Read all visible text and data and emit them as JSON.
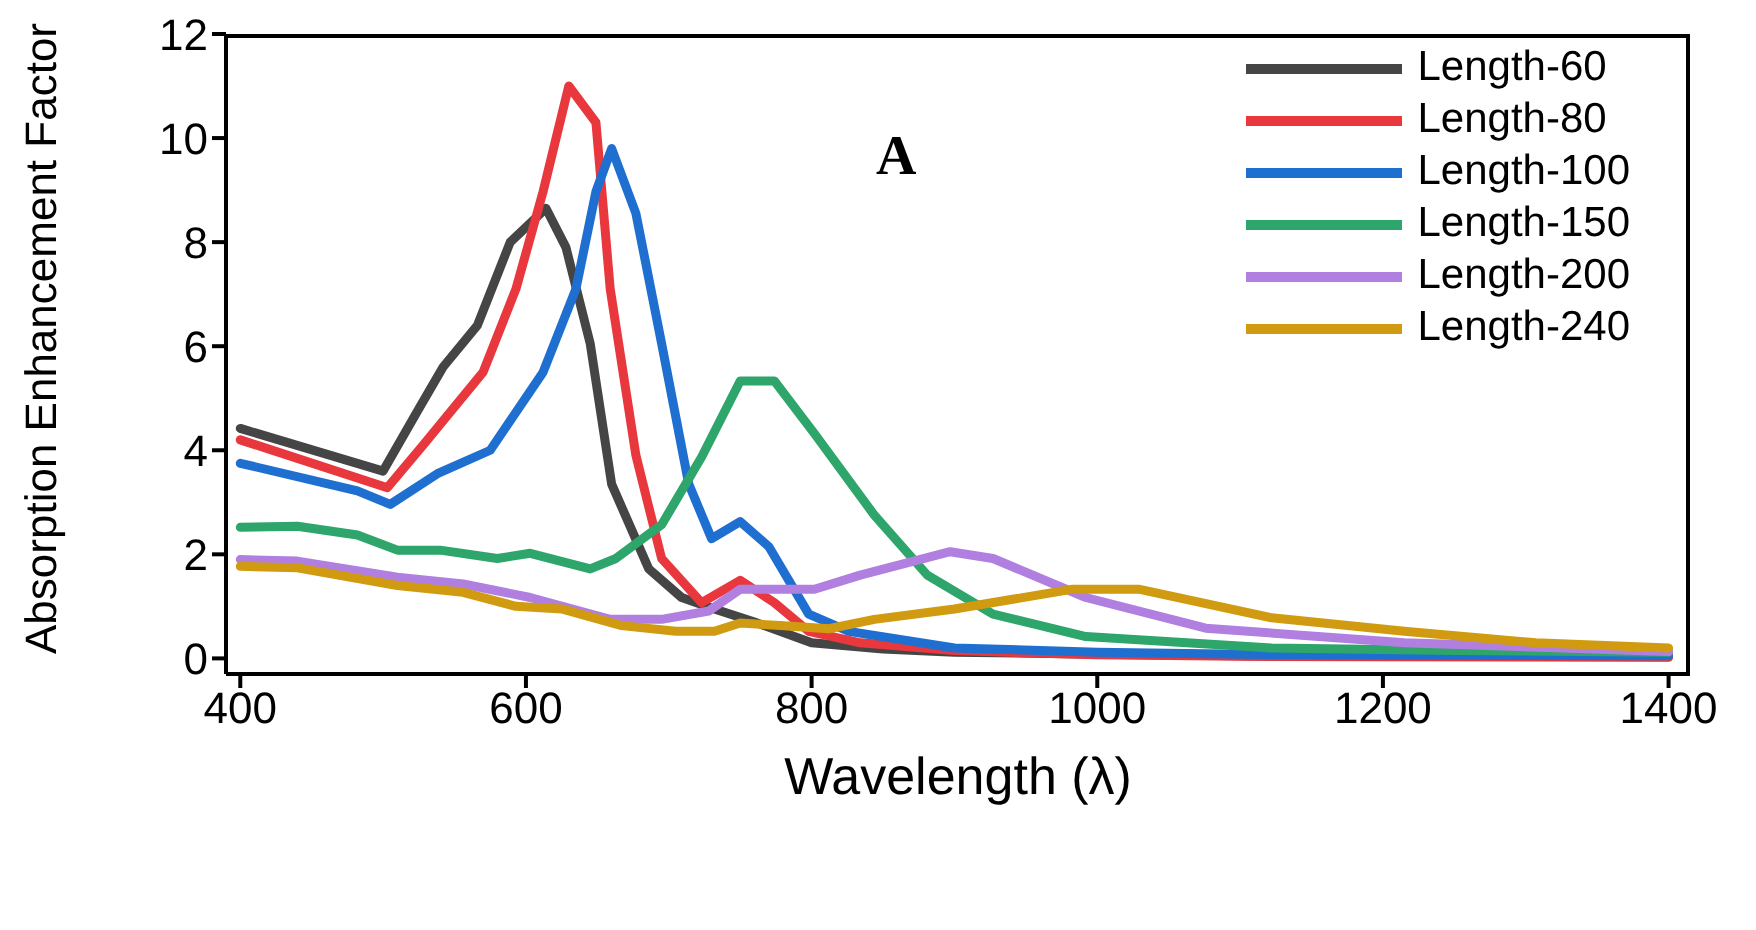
{
  "chart_data": {
    "type": "line",
    "xlabel": "Wavelength (λ)",
    "ylabel": "Absorption Enhancement Factor",
    "annotations": [
      "A"
    ],
    "xlim": [
      390,
      1415
    ],
    "xticks": [
      400,
      600,
      800,
      1000,
      1200,
      1400
    ],
    "ylim": [
      -0.3,
      12
    ],
    "yticks": [
      0,
      2,
      4,
      6,
      8,
      10,
      12
    ],
    "legend": "top right",
    "marker": "none",
    "line_style": "solid",
    "series": [
      {
        "name": "Length-60",
        "color": "#454545",
        "x": [
          400,
          500,
          524,
          542,
          566,
          589,
          614,
          628,
          645,
          660,
          686,
          709,
          732,
          760,
          800,
          850,
          900,
          1000,
          1100,
          1200,
          1400
        ],
        "values": [
          4.42,
          3.6,
          4.75,
          5.6,
          6.4,
          8.0,
          8.65,
          7.9,
          6.05,
          3.35,
          1.72,
          1.17,
          0.95,
          0.7,
          0.3,
          0.18,
          0.12,
          0.08,
          0.05,
          0.04,
          0.03
        ]
      },
      {
        "name": "Length-80",
        "color": "#e8383d",
        "x": [
          400,
          503,
          528,
          570,
          593,
          612,
          630,
          649,
          659,
          677,
          695,
          723,
          750,
          774,
          798,
          834,
          900,
          1000,
          1100,
          1200,
          1400
        ],
        "values": [
          4.2,
          3.28,
          4.1,
          5.5,
          7.1,
          8.97,
          11.0,
          10.3,
          7.1,
          3.9,
          1.92,
          1.07,
          1.5,
          1.07,
          0.52,
          0.3,
          0.15,
          0.07,
          0.04,
          0.03,
          0.02
        ]
      },
      {
        "name": "Length-100",
        "color": "#1f6fd1",
        "x": [
          400,
          482,
          505,
          538,
          575,
          612,
          635,
          649,
          660,
          677,
          695,
          714,
          730,
          750,
          770,
          798,
          826,
          900,
          1000,
          1100,
          1200,
          1400
        ],
        "values": [
          3.75,
          3.22,
          2.96,
          3.55,
          4.0,
          5.5,
          7.1,
          8.97,
          9.8,
          8.55,
          6.05,
          3.35,
          2.3,
          2.63,
          2.15,
          0.85,
          0.52,
          0.2,
          0.12,
          0.08,
          0.06,
          0.05
        ]
      },
      {
        "name": "Length-150",
        "color": "#2ea56a",
        "x": [
          400,
          440,
          482,
          510,
          540,
          580,
          603,
          645,
          663,
          695,
          723,
          750,
          774,
          802,
          844,
          881,
          927,
          992,
          1122,
          1250,
          1400
        ],
        "values": [
          2.52,
          2.54,
          2.37,
          2.08,
          2.08,
          1.92,
          2.02,
          1.72,
          1.92,
          2.57,
          3.87,
          5.33,
          5.33,
          4.32,
          2.75,
          1.6,
          0.85,
          0.42,
          0.2,
          0.15,
          0.12
        ]
      },
      {
        "name": "Length-200",
        "color": "#b07fe0",
        "x": [
          400,
          440,
          510,
          556,
          603,
          659,
          695,
          728,
          750,
          802,
          834,
          897,
          927,
          992,
          1076,
          1215,
          1400
        ],
        "values": [
          1.9,
          1.87,
          1.56,
          1.43,
          1.17,
          0.75,
          0.75,
          0.91,
          1.33,
          1.33,
          1.6,
          2.05,
          1.92,
          1.17,
          0.58,
          0.3,
          0.13
        ]
      },
      {
        "name": "Length-240",
        "color": "#d09b10",
        "x": [
          400,
          440,
          510,
          556,
          593,
          625,
          667,
          705,
          732,
          750,
          778,
          812,
          844,
          900,
          983,
          1029,
          1122,
          1215,
          1307,
          1400
        ],
        "values": [
          1.77,
          1.74,
          1.4,
          1.27,
          1.0,
          0.95,
          0.63,
          0.52,
          0.52,
          0.68,
          0.63,
          0.57,
          0.75,
          0.95,
          1.33,
          1.33,
          0.78,
          0.52,
          0.3,
          0.2
        ]
      }
    ]
  }
}
